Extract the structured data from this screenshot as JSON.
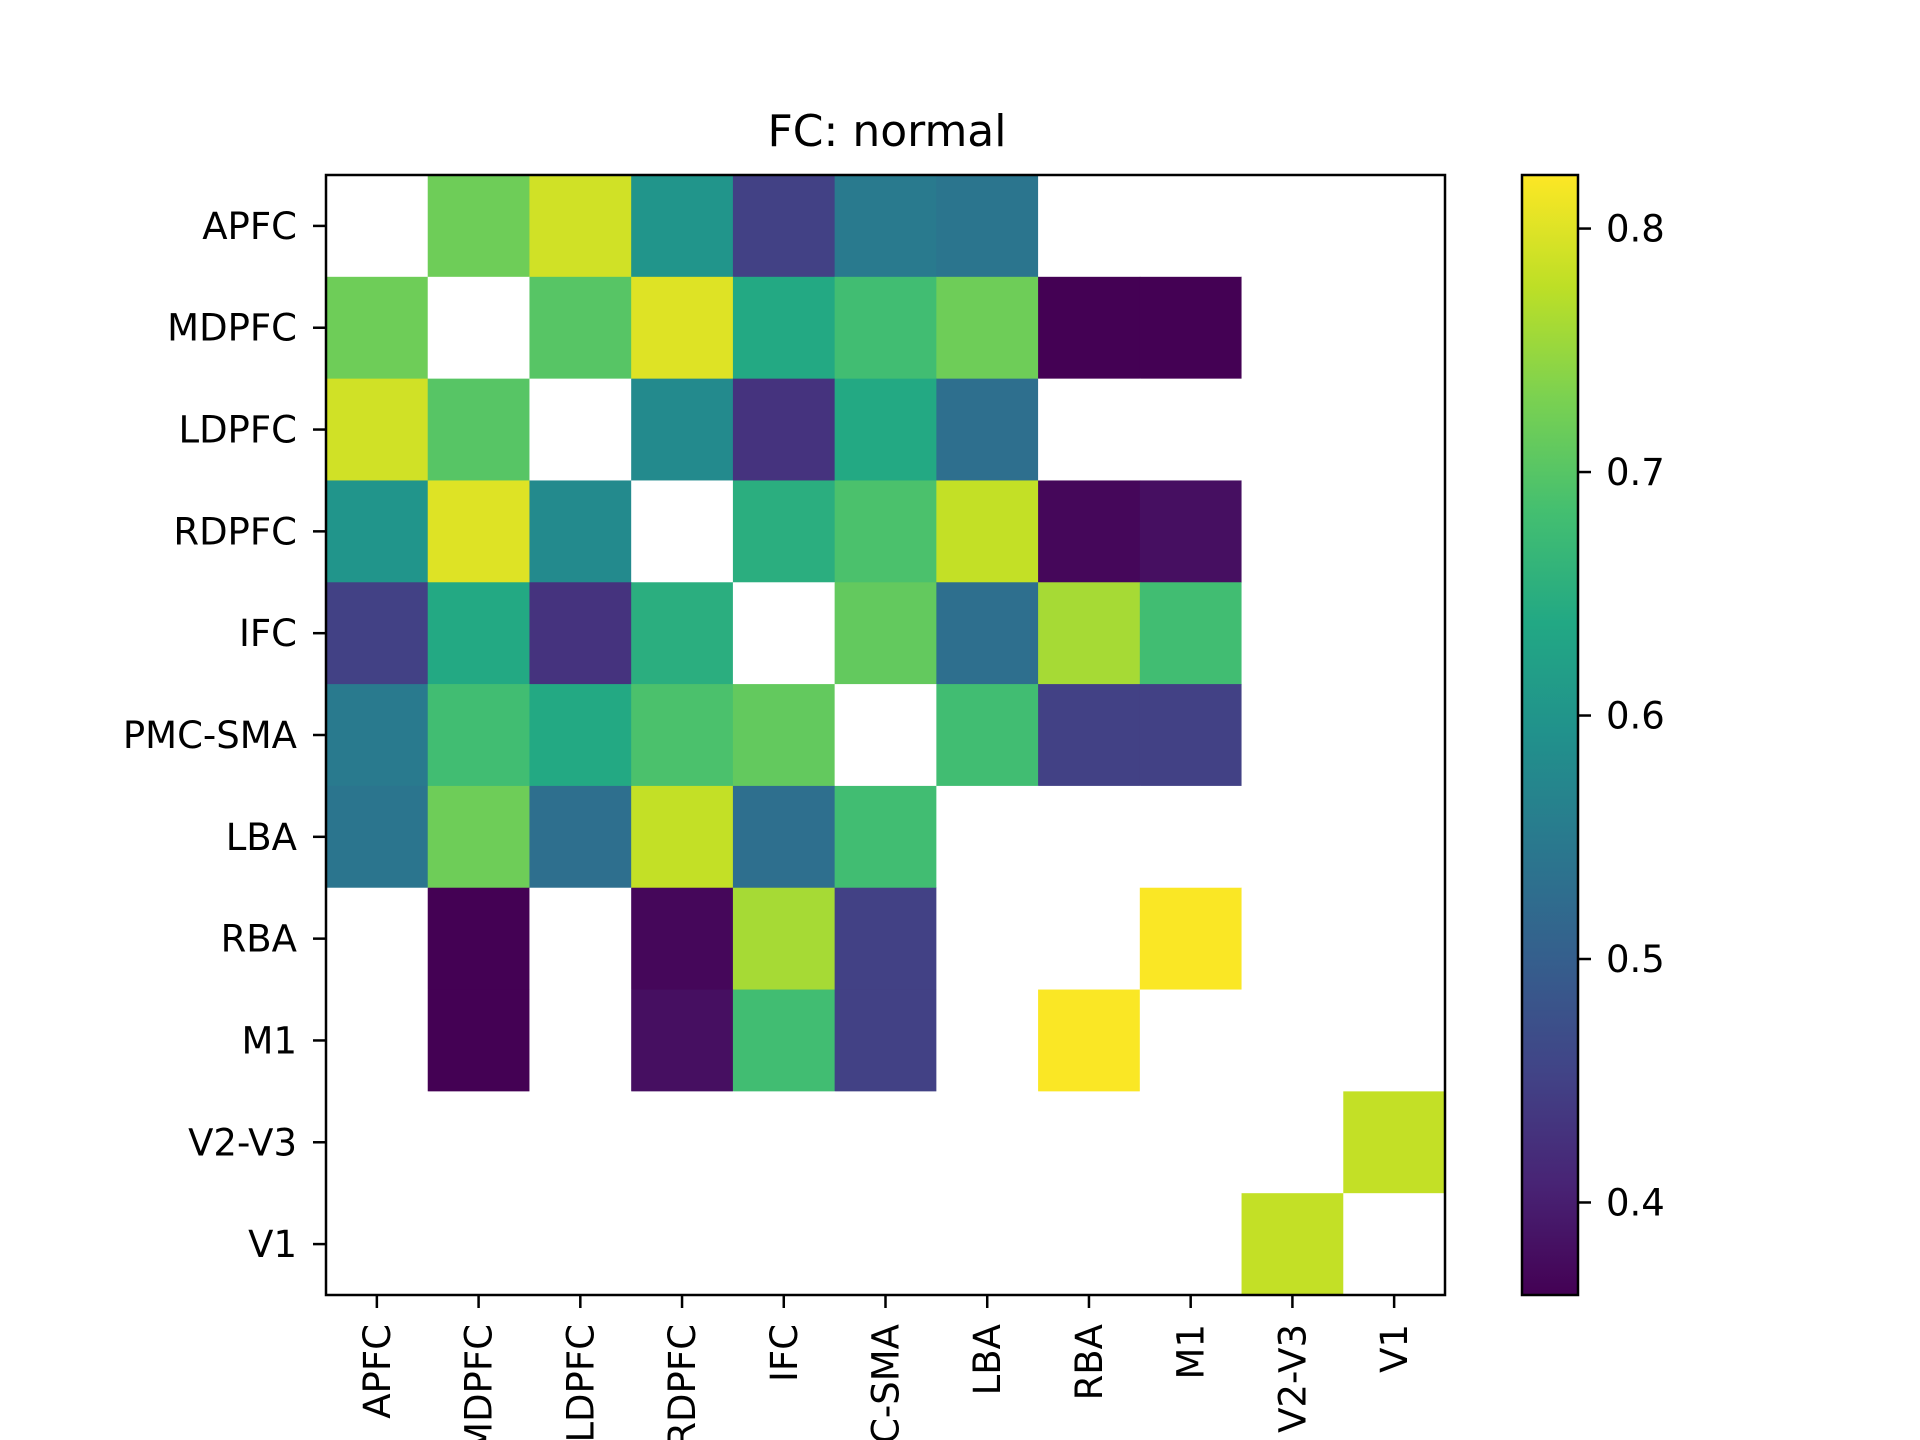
{
  "chart_data": {
    "type": "heatmap",
    "title": "FC: normal",
    "rows": [
      "APFC",
      "MDPFC",
      "LDPFC",
      "RDPFC",
      "IFC",
      "PMC-SMA",
      "LBA",
      "RBA",
      "M1",
      "V2-V3",
      "V1"
    ],
    "cols": [
      "APFC",
      "MDPFC",
      "LDPFC",
      "RDPFC",
      "IFC",
      "PMC-SMA",
      "LBA",
      "RBA",
      "M1",
      "V2-V3",
      "V1"
    ],
    "values": [
      [
        null,
        0.72,
        0.79,
        0.6,
        0.45,
        0.55,
        0.54,
        null,
        null,
        null,
        null
      ],
      [
        0.72,
        null,
        0.7,
        0.8,
        0.64,
        0.68,
        0.72,
        0.36,
        0.36,
        null,
        null
      ],
      [
        0.79,
        0.7,
        null,
        0.58,
        0.43,
        0.64,
        0.53,
        null,
        null,
        null,
        null
      ],
      [
        0.6,
        0.8,
        0.58,
        null,
        0.65,
        0.69,
        0.78,
        0.37,
        0.38,
        null,
        null
      ],
      [
        0.45,
        0.64,
        0.43,
        0.65,
        null,
        0.71,
        0.53,
        0.76,
        0.68,
        null,
        null
      ],
      [
        0.55,
        0.68,
        0.64,
        0.69,
        0.71,
        null,
        0.68,
        0.45,
        0.45,
        null,
        null
      ],
      [
        0.54,
        0.72,
        0.53,
        0.78,
        0.53,
        0.68,
        null,
        null,
        null,
        null,
        null
      ],
      [
        null,
        0.36,
        null,
        0.37,
        0.76,
        0.45,
        null,
        null,
        0.82,
        null,
        null
      ],
      [
        null,
        0.36,
        null,
        0.38,
        0.68,
        0.45,
        null,
        0.82,
        null,
        null,
        null
      ],
      [
        null,
        null,
        null,
        null,
        null,
        null,
        null,
        null,
        null,
        null,
        0.78
      ],
      [
        null,
        null,
        null,
        null,
        null,
        null,
        null,
        null,
        null,
        0.78,
        null
      ]
    ],
    "colormap": "viridis",
    "colorbar": {
      "min": 0.362,
      "max": 0.822,
      "ticks": [
        0.4,
        0.5,
        0.6,
        0.7,
        0.8
      ],
      "tick_labels": [
        "0.4",
        "0.5",
        "0.6",
        "0.7",
        "0.8"
      ]
    },
    "missing_color": "#ffffff"
  }
}
